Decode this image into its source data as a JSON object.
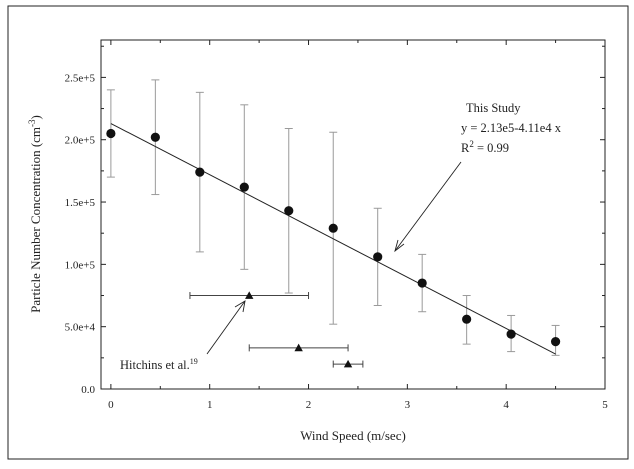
{
  "chart_data": {
    "type": "scatter",
    "xlabel": "Wind Speed (m/sec)",
    "ylabel": "Particle Number Concentration (cm",
    "ylabel_sup": "-3",
    "ylabel_close": ")",
    "xlim": [
      -0.1,
      5
    ],
    "ylim": [
      0,
      280000
    ],
    "xticks": [
      0,
      1,
      2,
      3,
      4,
      5
    ],
    "xtick_labels": [
      "0",
      "1",
      "2",
      "3",
      "4",
      "5"
    ],
    "yticks": [
      0,
      50000,
      100000,
      150000,
      200000,
      250000
    ],
    "ytick_labels": [
      "0.0",
      "5.0e+4",
      "1.0e+5",
      "1.5e+5",
      "2.0e+5",
      "2.5e+5"
    ],
    "grid": false,
    "series": [
      {
        "marker": "circle",
        "color": "#111111",
        "x": [
          0,
          0.45,
          0.9,
          1.35,
          1.8,
          2.25,
          2.7,
          3.15,
          3.6,
          4.05,
          4.5
        ],
        "y": [
          205000,
          202000,
          174000,
          162000,
          143000,
          129000,
          106000,
          85000,
          56000,
          44000,
          38000
        ],
        "y_err_low": [
          170000,
          156000,
          110000,
          96000,
          77000,
          52000,
          67000,
          62000,
          36000,
          30000,
          27000
        ],
        "y_err_high": [
          240000,
          248000,
          238000,
          228000,
          209000,
          206000,
          145000,
          108000,
          75000,
          59000,
          51000
        ]
      },
      {
        "marker": "triangle",
        "color": "#111111",
        "x": [
          1.4,
          1.9,
          2.4
        ],
        "y": [
          75000,
          33000,
          20000
        ],
        "x_err_low": [
          0.8,
          1.4,
          2.25
        ],
        "x_err_high": [
          2.0,
          2.4,
          2.55
        ]
      }
    ],
    "fit_line": {
      "x": [
        0,
        4.5
      ],
      "y": [
        213000,
        28000
      ]
    },
    "annotations": [
      {
        "lines": [
          "This Study",
          "y = 2.13e5-4.11e4 x",
          "R"
        ],
        "sup": "2",
        "tail": " = 0.99",
        "points_to": [
          2.8,
          107000
        ]
      },
      {
        "text": "Hitchins et al.",
        "sup": "19",
        "points_to": [
          1.4,
          72000
        ]
      }
    ]
  }
}
